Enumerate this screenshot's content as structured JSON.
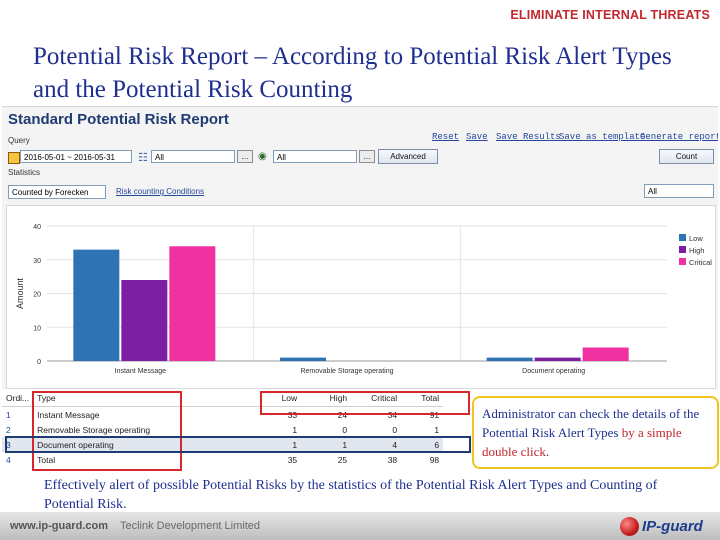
{
  "banner": "ELIMINATE INTERNAL THREATS",
  "slide_title": "Potential Risk Report – According to Potential Risk Alert Types and the Potential Risk Counting",
  "report": {
    "title": "Standard Potential Risk Report",
    "toplinks": [
      "Reset",
      "Save",
      "Save Results",
      "Save as template",
      "Generate report"
    ],
    "query_label": "Query",
    "date_range": "2016-05-01 ~ 2016-05-31",
    "computer_select": "All",
    "user_select": "All",
    "dots_label": "...",
    "advanced_button": "Advanced",
    "count_button": "Count",
    "statistics_label": "Statistics",
    "counted_by": "Counted by Forecken",
    "risk_counting_link": "Risk counting Conditions",
    "filter_select": "All"
  },
  "chart_data": {
    "type": "bar",
    "categories": [
      "Instant Message",
      "Removable Storage operating",
      "Document operating"
    ],
    "series": [
      {
        "name": "Low",
        "values": [
          33,
          1,
          1
        ],
        "color": "#2e74b5"
      },
      {
        "name": "High",
        "values": [
          24,
          0,
          1
        ],
        "color": "#7b1ea2"
      },
      {
        "name": "Critical",
        "values": [
          34,
          0,
          4
        ],
        "color": "#f032a0"
      }
    ],
    "ylabel": "Amount",
    "yticks": [
      0,
      10,
      20,
      30,
      40
    ],
    "ylim": [
      0,
      40
    ],
    "grid": true,
    "legend": "right"
  },
  "table": {
    "headers": [
      "Ordi...",
      "Type",
      "Low",
      "High",
      "Critical",
      "Total"
    ],
    "rows": [
      [
        "1",
        "Instant Message",
        "33",
        "24",
        "34",
        "91"
      ],
      [
        "2",
        "Removable Storage operating",
        "1",
        "0",
        "0",
        "1"
      ],
      [
        "3",
        "Document operating",
        "1",
        "1",
        "4",
        "6"
      ],
      [
        "4",
        "Total",
        "35",
        "25",
        "38",
        "98"
      ]
    ]
  },
  "callout": {
    "part1": "Administrator can check the details of the Potential Risk Alert Types ",
    "part2": "by a simple double click",
    "part3": "."
  },
  "bottom_text": "Effectively alert of possible Potential Risks by the statistics of the Potential Risk Alert Types and Counting of Potential Risk.",
  "footer": {
    "url": "www.ip-guard.com",
    "company": "Teclink Development Limited",
    "logo": "IP-guard"
  },
  "colors": {
    "title_blue": "#1f2f8f",
    "accent_red": "#c0282e",
    "callout_border": "#f0c51f",
    "selected_row_border": "#1f3b73"
  }
}
